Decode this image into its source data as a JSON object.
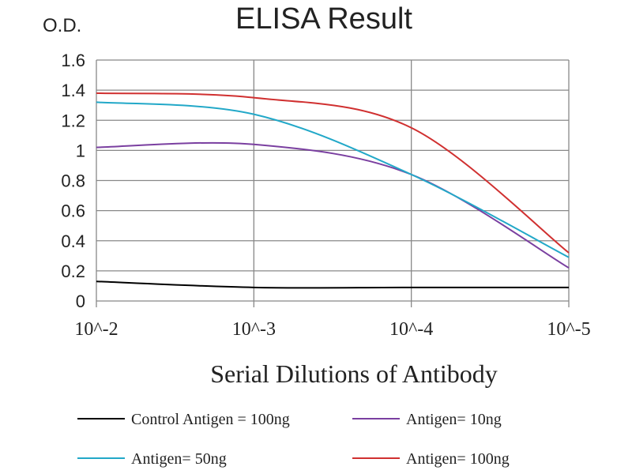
{
  "chart_data": {
    "type": "line",
    "title": "ELISA Result",
    "ylabel": "O.D.",
    "xlabel": "Serial Dilutions  of Antibody",
    "categories": [
      "10^-2",
      "10^-3",
      "10^-4",
      "10^-5"
    ],
    "yticks": [
      "0",
      "0.2",
      "0.4",
      "0.6",
      "0.8",
      "1",
      "1.2",
      "1.4",
      "1.6"
    ],
    "ylim": [
      0,
      1.6
    ],
    "grid": true,
    "legend_position": "bottom",
    "series": [
      {
        "name": "Control Antigen = 100ng",
        "color": "#000000",
        "values": [
          0.13,
          0.09,
          0.09,
          0.09
        ]
      },
      {
        "name": "Antigen= 10ng",
        "color": "#7a3fa0",
        "values": [
          1.02,
          1.04,
          0.84,
          0.22
        ]
      },
      {
        "name": "Antigen= 50ng",
        "color": "#22a8c8",
        "values": [
          1.32,
          1.24,
          0.84,
          0.29
        ]
      },
      {
        "name": "Antigen= 100ng",
        "color": "#d03030",
        "values": [
          1.38,
          1.35,
          1.15,
          0.32
        ]
      }
    ]
  }
}
